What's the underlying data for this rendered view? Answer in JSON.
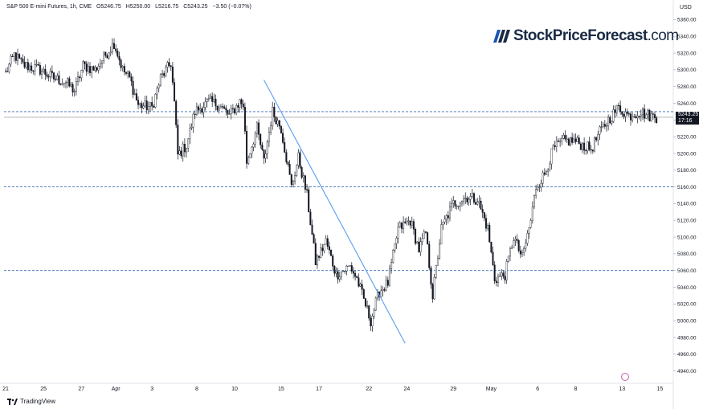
{
  "header": {
    "symbol": "S&P 500 E-mini Futures, 1h, CME",
    "open": "O5246.75",
    "high": "H5250.00",
    "low": "L5216.75",
    "close": "C5243.25",
    "change": "−3.50 (−0.07%)"
  },
  "logo": {
    "name": "StockPriceForecast",
    "tld": ".com"
  },
  "footer": {
    "brand": "TradingView"
  },
  "price_axis": {
    "currency": "USD",
    "current_price": "5243.25",
    "countdown": "17:16"
  },
  "colors": {
    "candles": "#131722",
    "trendline": "#5b9cf0",
    "levels": "#3b6fb6",
    "current_price_line": "#888888",
    "logo_blue": "#1a55b5"
  },
  "chart_data": {
    "type": "candlestick",
    "timeframe": "1h",
    "ylim": [
      4930,
      5370
    ],
    "yticks": [
      4940,
      4960,
      4980,
      5000,
      5020,
      5040,
      5060,
      5080,
      5100,
      5120,
      5140,
      5160,
      5180,
      5200,
      5220,
      5240,
      5260,
      5280,
      5300,
      5320,
      5340,
      5360
    ],
    "ytick_labels": [
      "4940.00",
      "4960.00",
      "4980.00",
      "5000.00",
      "5020.00",
      "5040.00",
      "5060.00",
      "5080.00",
      "5100.00",
      "5120.00",
      "5140.00",
      "5160.00",
      "5180.00",
      "5200.00",
      "5220.00",
      "5240.00",
      "5260.00",
      "5280.00",
      "5300.00",
      "5320.00",
      "5340.00",
      "5360.00"
    ],
    "x_labels": [
      "21",
      "25",
      "27",
      "Apr",
      "3",
      "8",
      "10",
      "15",
      "17",
      "22",
      "24",
      "29",
      "May",
      "6",
      "8",
      "13",
      "15"
    ],
    "x_label_index": [
      0,
      22,
      44,
      64,
      85,
      111,
      133,
      160,
      182,
      211,
      233,
      260,
      282,
      309,
      331,
      358,
      380
    ],
    "bar_count": 385,
    "horizontal_levels": [
      5250,
      5160,
      5060
    ],
    "current_price": 5243.25,
    "trendline": {
      "start": [
        150,
        5288
      ],
      "end": [
        232,
        4973
      ]
    },
    "path": [
      [
        0,
        5296
      ],
      [
        5,
        5318
      ],
      [
        10,
        5306
      ],
      [
        20,
        5300
      ],
      [
        28,
        5290
      ],
      [
        35,
        5285
      ],
      [
        40,
        5275
      ],
      [
        45,
        5305
      ],
      [
        52,
        5300
      ],
      [
        58,
        5318
      ],
      [
        63,
        5332
      ],
      [
        68,
        5300
      ],
      [
        72,
        5290
      ],
      [
        77,
        5258
      ],
      [
        85,
        5255
      ],
      [
        90,
        5290
      ],
      [
        96,
        5308
      ],
      [
        98,
        5260
      ],
      [
        100,
        5198
      ],
      [
        105,
        5210
      ],
      [
        110,
        5250
      ],
      [
        118,
        5262
      ],
      [
        124,
        5258
      ],
      [
        130,
        5245
      ],
      [
        136,
        5262
      ],
      [
        138,
        5258
      ],
      [
        140,
        5190
      ],
      [
        146,
        5230
      ],
      [
        150,
        5190
      ],
      [
        155,
        5250
      ],
      [
        160,
        5230
      ],
      [
        166,
        5160
      ],
      [
        170,
        5195
      ],
      [
        175,
        5150
      ],
      [
        180,
        5070
      ],
      [
        186,
        5095
      ],
      [
        192,
        5055
      ],
      [
        200,
        5065
      ],
      [
        204,
        5050
      ],
      [
        208,
        5025
      ],
      [
        212,
        5000
      ],
      [
        217,
        5035
      ],
      [
        222,
        5045
      ],
      [
        228,
        5110
      ],
      [
        235,
        5120
      ],
      [
        240,
        5085
      ],
      [
        244,
        5105
      ],
      [
        248,
        5030
      ],
      [
        253,
        5110
      ],
      [
        260,
        5140
      ],
      [
        268,
        5148
      ],
      [
        274,
        5145
      ],
      [
        280,
        5110
      ],
      [
        284,
        5050
      ],
      [
        290,
        5055
      ],
      [
        295,
        5100
      ],
      [
        300,
        5075
      ],
      [
        305,
        5120
      ],
      [
        308,
        5160
      ],
      [
        313,
        5175
      ],
      [
        318,
        5205
      ],
      [
        324,
        5215
      ],
      [
        330,
        5215
      ],
      [
        335,
        5210
      ],
      [
        340,
        5205
      ],
      [
        345,
        5225
      ],
      [
        350,
        5240
      ],
      [
        356,
        5255
      ],
      [
        362,
        5245
      ],
      [
        368,
        5250
      ],
      [
        374,
        5245
      ],
      [
        378,
        5243.25
      ]
    ]
  }
}
